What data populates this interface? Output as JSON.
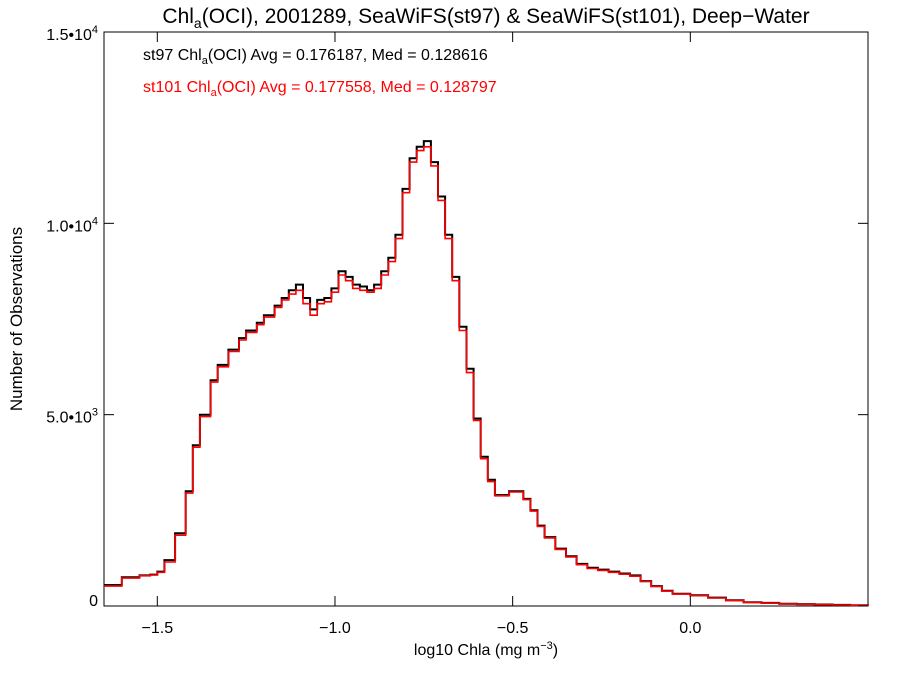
{
  "chart_data": {
    "type": "line",
    "title": {
      "prefix": "Chl",
      "sub": "a",
      "suffix": "(OCI), 2001289, SeaWiFS(st97) & SeaWiFS(st101), Deep−Water"
    },
    "xlabel": {
      "main": "log10 Chla (mg m",
      "sup": "−3",
      "close": ")"
    },
    "ylabel": "Number of Observations",
    "xlim": [
      -1.65,
      0.5
    ],
    "ylim": [
      0,
      15000
    ],
    "x_ticks": [
      {
        "value": -1.5,
        "label": "−1.5"
      },
      {
        "value": -1.0,
        "label": "−1.0"
      },
      {
        "value": -0.5,
        "label": "−0.5"
      },
      {
        "value": 0.0,
        "label": "0.0"
      }
    ],
    "y_ticks": [
      {
        "value": 0,
        "mant": "0",
        "exp": ""
      },
      {
        "value": 5000,
        "mant": "5.0•10",
        "exp": "3"
      },
      {
        "value": 10000,
        "mant": "1.0•10",
        "exp": "4"
      },
      {
        "value": 15000,
        "mant": "1.5•10",
        "exp": "4"
      }
    ],
    "annotations": [
      {
        "prefix": "st97 Chl",
        "sub": "a",
        "suffix": "(OCI) Avg = 0.176187, Med = 0.128616",
        "color": "#000000"
      },
      {
        "prefix": "st101 Chl",
        "sub": "a",
        "suffix": "(OCI) Avg = 0.177558, Med = 0.128797",
        "color": "#ff0000"
      }
    ],
    "series": [
      {
        "color": "#000000",
        "x": [
          -1.65,
          -1.6,
          -1.55,
          -1.52,
          -1.5,
          -1.48,
          -1.45,
          -1.42,
          -1.4,
          -1.38,
          -1.35,
          -1.33,
          -1.3,
          -1.27,
          -1.25,
          -1.22,
          -1.2,
          -1.17,
          -1.15,
          -1.13,
          -1.11,
          -1.09,
          -1.07,
          -1.05,
          -1.03,
          -1.01,
          -0.99,
          -0.97,
          -0.95,
          -0.93,
          -0.91,
          -0.89,
          -0.87,
          -0.85,
          -0.83,
          -0.81,
          -0.79,
          -0.77,
          -0.75,
          -0.73,
          -0.71,
          -0.69,
          -0.67,
          -0.65,
          -0.63,
          -0.61,
          -0.59,
          -0.57,
          -0.55,
          -0.53,
          -0.51,
          -0.49,
          -0.47,
          -0.45,
          -0.43,
          -0.41,
          -0.38,
          -0.35,
          -0.32,
          -0.29,
          -0.26,
          -0.23,
          -0.2,
          -0.17,
          -0.14,
          -0.11,
          -0.08,
          -0.05,
          0.0,
          0.05,
          0.1,
          0.15,
          0.2,
          0.25,
          0.3,
          0.35,
          0.4,
          0.45,
          0.5
        ],
        "y": [
          550,
          750,
          800,
          820,
          900,
          1200,
          1900,
          3000,
          4200,
          5000,
          5900,
          6300,
          6700,
          7000,
          7200,
          7400,
          7600,
          7850,
          8050,
          8250,
          8400,
          8050,
          7750,
          8000,
          8050,
          8300,
          8750,
          8600,
          8400,
          8350,
          8250,
          8400,
          8750,
          9100,
          9700,
          10900,
          11700,
          12000,
          12150,
          11600,
          10700,
          9700,
          8600,
          7300,
          6200,
          4900,
          3900,
          3300,
          2900,
          2900,
          3000,
          3000,
          2800,
          2500,
          2100,
          1800,
          1500,
          1300,
          1100,
          1000,
          950,
          900,
          850,
          800,
          650,
          520,
          400,
          320,
          280,
          220,
          150,
          100,
          80,
          60,
          50,
          40,
          30,
          20,
          15
        ]
      },
      {
        "color": "#ff0000",
        "x": [
          -1.65,
          -1.6,
          -1.55,
          -1.52,
          -1.5,
          -1.48,
          -1.45,
          -1.42,
          -1.4,
          -1.38,
          -1.35,
          -1.33,
          -1.3,
          -1.27,
          -1.25,
          -1.22,
          -1.2,
          -1.17,
          -1.15,
          -1.13,
          -1.11,
          -1.09,
          -1.07,
          -1.05,
          -1.03,
          -1.01,
          -0.99,
          -0.97,
          -0.95,
          -0.93,
          -0.91,
          -0.89,
          -0.87,
          -0.85,
          -0.83,
          -0.81,
          -0.79,
          -0.77,
          -0.75,
          -0.73,
          -0.71,
          -0.69,
          -0.67,
          -0.65,
          -0.63,
          -0.61,
          -0.59,
          -0.57,
          -0.55,
          -0.53,
          -0.51,
          -0.49,
          -0.47,
          -0.45,
          -0.43,
          -0.41,
          -0.38,
          -0.35,
          -0.32,
          -0.29,
          -0.26,
          -0.23,
          -0.2,
          -0.17,
          -0.14,
          -0.11,
          -0.08,
          -0.05,
          0.0,
          0.05,
          0.1,
          0.15,
          0.2,
          0.25,
          0.3,
          0.35,
          0.4,
          0.45,
          0.5
        ],
        "y": [
          520,
          730,
          790,
          810,
          880,
          1150,
          1850,
          2950,
          4150,
          4950,
          5850,
          6250,
          6650,
          6950,
          7150,
          7350,
          7550,
          7800,
          8000,
          8150,
          8250,
          7900,
          7600,
          7900,
          7950,
          8200,
          8650,
          8500,
          8300,
          8250,
          8200,
          8300,
          8650,
          9000,
          9600,
          10800,
          11600,
          11900,
          12000,
          11500,
          10600,
          9600,
          8500,
          7200,
          6100,
          4850,
          3850,
          3250,
          2880,
          2880,
          2980,
          2980,
          2780,
          2480,
          2080,
          1780,
          1480,
          1280,
          1080,
          980,
          930,
          880,
          830,
          780,
          640,
          510,
          390,
          310,
          270,
          210,
          140,
          95,
          75,
          55,
          45,
          35,
          25,
          18,
          12
        ]
      }
    ]
  }
}
